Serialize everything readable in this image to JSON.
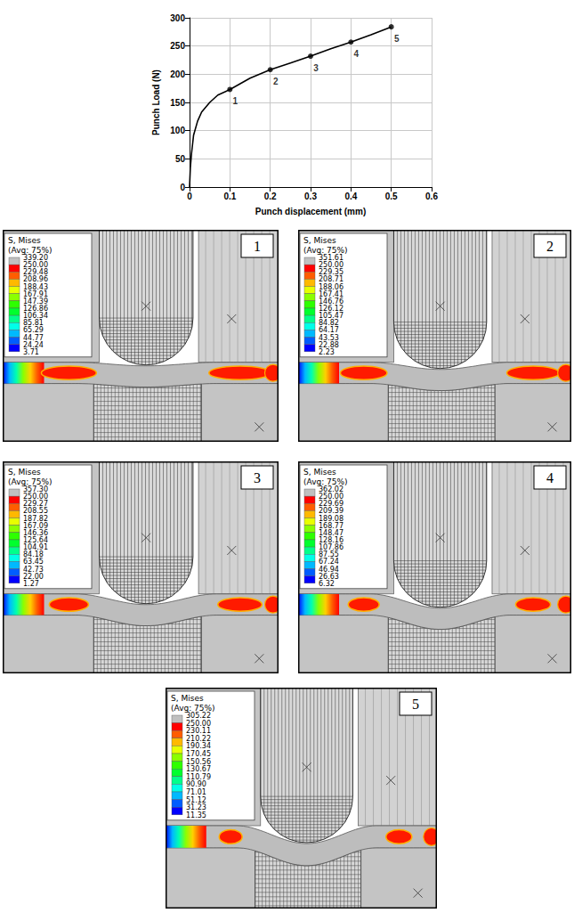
{
  "chart_data": {
    "type": "line",
    "xlabel": "Punch displacement (mm)",
    "ylabel": "Punch Load (N)",
    "x": [
      0,
      0.002,
      0.005,
      0.01,
      0.02,
      0.03,
      0.05,
      0.07,
      0.1,
      0.15,
      0.2,
      0.25,
      0.3,
      0.35,
      0.4,
      0.45,
      0.5
    ],
    "values": [
      0,
      35,
      60,
      92,
      117,
      133,
      150,
      163,
      173,
      193,
      208,
      220,
      232,
      245,
      257,
      270,
      284
    ],
    "color": "#000000",
    "xlim": [
      0,
      0.6
    ],
    "xticks": [
      0,
      0.1,
      0.2,
      0.3,
      0.4,
      0.5,
      0.6
    ],
    "ylim": [
      0,
      300
    ],
    "yticks": [
      0,
      50,
      100,
      150,
      200,
      250,
      300
    ],
    "grid": true,
    "points": {
      "x": [
        0.1,
        0.2,
        0.3,
        0.4,
        0.5
      ],
      "y": [
        173,
        208,
        232,
        257,
        284
      ],
      "labels": [
        "1",
        "2",
        "3",
        "4",
        "5"
      ],
      "marker": "circle"
    }
  },
  "panels": [
    {
      "label": "1",
      "legend_title": "S, Mises",
      "legend_subtitle": "(Avg: 75%)",
      "contour_labels": [
        "339.20",
        "250.00",
        "229.48",
        "208.96",
        "188.43",
        "167.91",
        "147.39",
        "126.86",
        "106.34",
        "85.81",
        "65.29",
        "44.77",
        "24.24",
        "3.71"
      ]
    },
    {
      "label": "2",
      "legend_title": "S, Mises",
      "legend_subtitle": "(Avg: 75%)",
      "contour_labels": [
        "351.61",
        "250.00",
        "229.35",
        "208.71",
        "188.06",
        "167.41",
        "146.76",
        "126.12",
        "105.47",
        "84.82",
        "64.17",
        "43.53",
        "22.88",
        "2.23"
      ]
    },
    {
      "label": "3",
      "legend_title": "S, Mises",
      "legend_subtitle": "(Avg: 75%)",
      "contour_labels": [
        "357.30",
        "250.00",
        "229.27",
        "208.55",
        "187.82",
        "167.09",
        "146.36",
        "125.64",
        "104.91",
        "84.18",
        "63.45",
        "42.73",
        "22.00",
        "1.27"
      ]
    },
    {
      "label": "4",
      "legend_title": "S, Mises",
      "legend_subtitle": "(Avg: 75%)",
      "contour_labels": [
        "362.02",
        "250.00",
        "229.69",
        "209.39",
        "189.08",
        "168.77",
        "148.47",
        "128.16",
        "107.86",
        "87.55",
        "67.24",
        "46.94",
        "26.63",
        "6.32"
      ]
    },
    {
      "label": "5",
      "legend_title": "S, Mises",
      "legend_subtitle": "(Avg: 75%)",
      "contour_labels": [
        "305.22",
        "250.00",
        "230.11",
        "210.22",
        "190.34",
        "170.45",
        "150.56",
        "130.67",
        "110.79",
        "90.90",
        "71.01",
        "51.12",
        "31.23",
        "11.35"
      ]
    }
  ]
}
